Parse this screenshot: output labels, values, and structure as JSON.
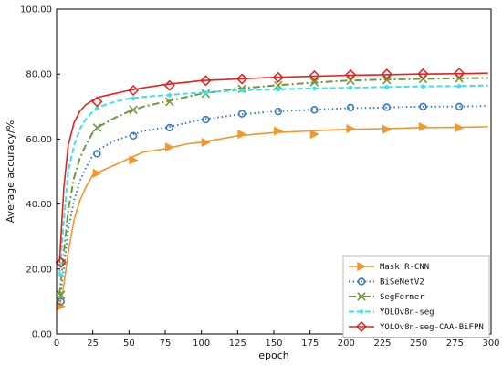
{
  "chart_data": {
    "type": "line",
    "xlabel": "epoch",
    "ylabel": "Average accuracy/%",
    "xlim": [
      0,
      300
    ],
    "ylim": [
      0,
      100
    ],
    "xticks": [
      0,
      25,
      50,
      75,
      100,
      125,
      150,
      175,
      200,
      225,
      250,
      275,
      300
    ],
    "xtick_labels": [
      "0",
      "25",
      "50",
      "75",
      "100",
      "125",
      "150",
      "175",
      "200",
      "225",
      "250",
      "275",
      "300"
    ],
    "yticks": [
      0,
      20,
      40,
      60,
      80,
      100
    ],
    "ytick_labels": [
      "0.00",
      "20.00",
      "40.00",
      "60.00",
      "80.00",
      "100.00"
    ],
    "grid": false,
    "legend_position": "bottom-right",
    "series": [
      {
        "name": "Mask R-CNN",
        "color": "#f5962a",
        "dash": "solid",
        "marker": "triangle-right",
        "x": [
          2,
          5,
          8,
          12,
          16,
          20,
          25,
          30,
          40,
          50,
          60,
          75,
          90,
          100,
          125,
          150,
          175,
          200,
          225,
          250,
          275,
          298
        ],
        "y": [
          8,
          15,
          25,
          35,
          41,
          45,
          49,
          50,
          52,
          54,
          56,
          57,
          58.5,
          59,
          61,
          62,
          62.5,
          63,
          63.2,
          63.5,
          63.6,
          63.8
        ],
        "markers_x": [
          3,
          28,
          53,
          78,
          103,
          128,
          153,
          178,
          203,
          228,
          253,
          278
        ],
        "markers_y": [
          8.5,
          49.5,
          53.5,
          57.5,
          59,
          61.5,
          62.5,
          61.5,
          63.2,
          63,
          63.8,
          63.5
        ]
      },
      {
        "name": "BiSeNetV2",
        "color": "#3a78c4",
        "dash": "dotted",
        "marker": "circle",
        "x": [
          2,
          5,
          8,
          12,
          16,
          20,
          25,
          30,
          40,
          50,
          60,
          75,
          90,
          100,
          125,
          150,
          175,
          200,
          225,
          250,
          275,
          298
        ],
        "y": [
          10,
          20,
          32,
          41,
          47,
          51,
          55,
          57,
          59.5,
          61,
          62.5,
          63.5,
          65,
          66,
          67.5,
          68.5,
          69,
          69.5,
          69.7,
          70,
          70,
          70.2
        ],
        "markers_x": [
          3,
          28,
          53,
          78,
          103,
          128,
          153,
          178,
          203,
          228,
          253,
          278
        ],
        "markers_y": [
          10,
          55.5,
          61,
          63.5,
          66,
          67.8,
          68.5,
          69,
          69.7,
          69.8,
          70,
          70
        ]
      },
      {
        "name": "SegFormer",
        "color": "#6b9a3c",
        "dash": "dashdot",
        "marker": "x",
        "x": [
          2,
          5,
          8,
          12,
          16,
          20,
          25,
          30,
          40,
          50,
          60,
          75,
          90,
          100,
          125,
          150,
          175,
          200,
          225,
          250,
          275,
          298
        ],
        "y": [
          12,
          25,
          38,
          48,
          54,
          58,
          62,
          64,
          66.5,
          68.5,
          70,
          71.5,
          73,
          74,
          75.5,
          76.5,
          77.3,
          78,
          78.3,
          78.5,
          78.7,
          78.8
        ],
        "markers_x": [
          3,
          28,
          53,
          78,
          103,
          128,
          153,
          178,
          203,
          228,
          253,
          278
        ],
        "markers_y": [
          12,
          63.5,
          69,
          71.5,
          74,
          75.5,
          76.5,
          77.5,
          78,
          78.2,
          78.5,
          78.7
        ]
      },
      {
        "name": "YOLOv8n-seg",
        "color": "#3fe0ea",
        "dash": "dashed",
        "marker": "dot",
        "x": [
          2,
          5,
          8,
          12,
          16,
          20,
          25,
          30,
          40,
          50,
          60,
          75,
          90,
          100,
          125,
          150,
          175,
          200,
          225,
          250,
          275,
          298
        ],
        "y": [
          18,
          35,
          50,
          58,
          63,
          66,
          68.5,
          70,
          71.5,
          72.5,
          73,
          73.5,
          74,
          74.3,
          75,
          75.3,
          75.6,
          75.8,
          76,
          76.2,
          76.3,
          76.5
        ],
        "markers_x": [
          3,
          28,
          53,
          78,
          103,
          128,
          153,
          178,
          203,
          228,
          253,
          278
        ],
        "markers_y": [
          18,
          69.5,
          72.5,
          73.5,
          74.3,
          75,
          75.3,
          75.6,
          75.8,
          76,
          76.2,
          76.3
        ]
      },
      {
        "name": "YOLOv8n-seg-CAA-BiFPN",
        "color": "#e8201c",
        "dash": "solid",
        "marker": "diamond",
        "x": [
          2,
          5,
          8,
          12,
          16,
          20,
          25,
          30,
          40,
          50,
          60,
          75,
          90,
          100,
          125,
          150,
          175,
          200,
          225,
          250,
          275,
          298
        ],
        "y": [
          22,
          45,
          58,
          65,
          68.5,
          70.5,
          72,
          73,
          74,
          75,
          75.8,
          76.8,
          77.5,
          78,
          78.5,
          79,
          79.3,
          79.6,
          79.8,
          80,
          80.1,
          80.3
        ],
        "markers_x": [
          3,
          28,
          53,
          78,
          103,
          128,
          153,
          178,
          203,
          228,
          253,
          278
        ],
        "markers_y": [
          22,
          71.5,
          75,
          76.5,
          78,
          78.5,
          79,
          79.5,
          79.8,
          80,
          80.1,
          80.3
        ]
      }
    ]
  }
}
